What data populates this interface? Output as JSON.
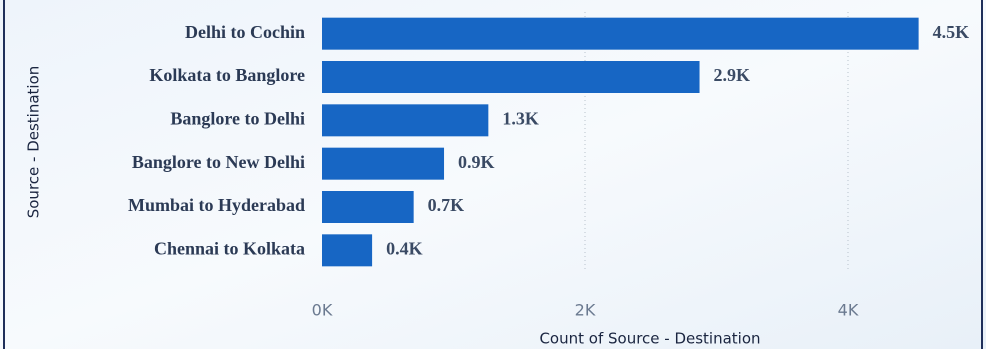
{
  "chart_data": {
    "type": "hbar",
    "categories": [
      "Delhi to Cochin",
      "Kolkata to Banglore",
      "Banglore to Delhi",
      "Banglore to New Delhi",
      "Mumbai to Hyderabad",
      "Chennai to Kolkata"
    ],
    "values": [
      4537,
      2871,
      1265,
      928,
      697,
      381
    ],
    "value_labels": [
      "4.5K",
      "2.9K",
      "1.3K",
      "0.9K",
      "0.7K",
      "0.4K"
    ],
    "color": "#1766c4",
    "xlim": [
      0,
      5000
    ],
    "xticks": [
      {
        "value": 0,
        "label": "0K"
      },
      {
        "value": 2000,
        "label": "2K"
      },
      {
        "value": 4000,
        "label": "4K"
      }
    ],
    "grid": true,
    "x_label": "Count of Source - Destination",
    "y_label": "Source - Destination"
  }
}
